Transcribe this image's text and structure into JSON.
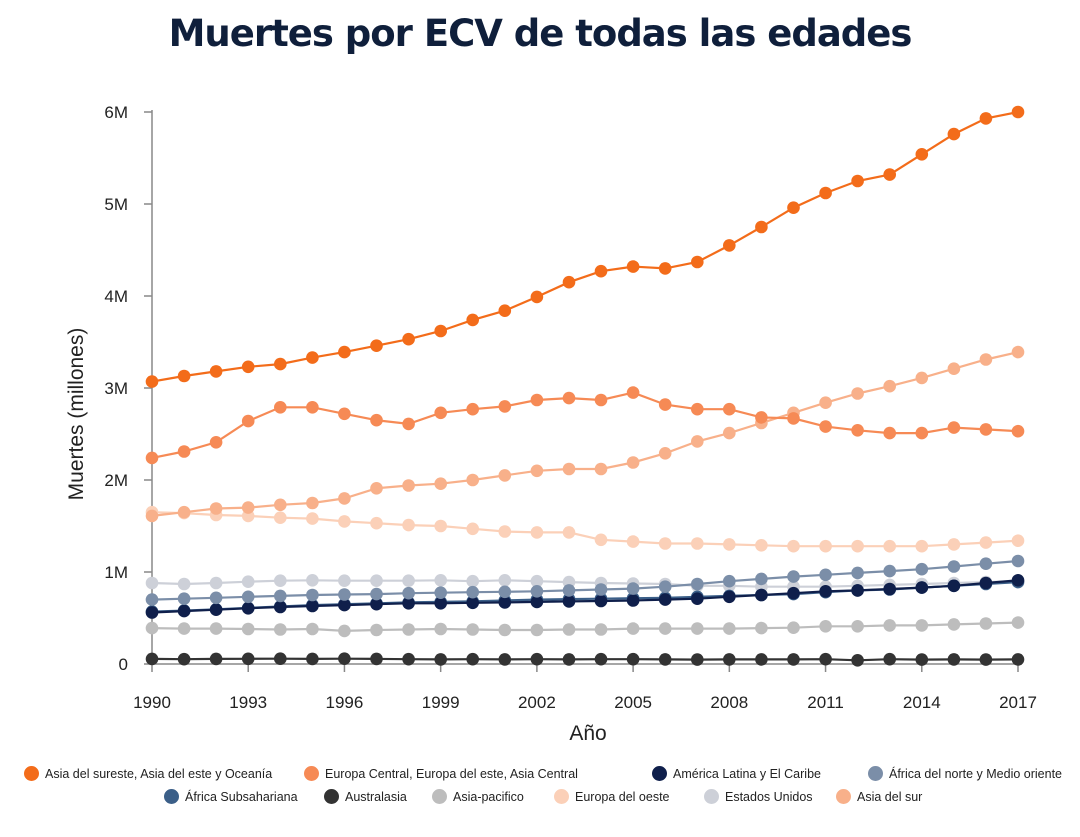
{
  "chart_data": {
    "type": "line",
    "title": "Muertes por ECV de todas las edades",
    "xlabel": "Año",
    "ylabel": "Muertes (millones)",
    "ylim": [
      0,
      6000000
    ],
    "xlim": [
      1990,
      2017
    ],
    "x_ticks": [
      1990,
      1993,
      1996,
      1999,
      2002,
      2005,
      2008,
      2011,
      2014,
      2017
    ],
    "x_tick_labels": [
      "1990",
      "1993",
      "1996",
      "1999",
      "2002",
      "2005",
      "2008",
      "2011",
      "2014",
      "2017"
    ],
    "y_ticks": [
      0,
      1000000,
      2000000,
      3000000,
      4000000,
      5000000,
      6000000
    ],
    "y_tick_labels": [
      "0",
      "1M",
      "2M",
      "3M",
      "4M",
      "5M",
      "6M"
    ],
    "x": [
      1990,
      1991,
      1992,
      1993,
      1994,
      1995,
      1996,
      1997,
      1998,
      1999,
      2000,
      2001,
      2002,
      2003,
      2004,
      2005,
      2006,
      2007,
      2008,
      2009,
      2010,
      2011,
      2012,
      2013,
      2014,
      2015,
      2016,
      2017
    ],
    "series": [
      {
        "name": "Estados Unidos",
        "color": "#cdd0d8",
        "values": [
          880000,
          870000,
          880000,
          895000,
          905000,
          910000,
          905000,
          905000,
          905000,
          910000,
          900000,
          910000,
          900000,
          890000,
          880000,
          875000,
          870000,
          850000,
          850000,
          840000,
          840000,
          840000,
          850000,
          860000,
          870000,
          880000,
          890000,
          900000
        ]
      },
      {
        "name": "Europa del oeste",
        "color": "#fbd0b8",
        "values": [
          1650000,
          1640000,
          1620000,
          1610000,
          1590000,
          1580000,
          1550000,
          1530000,
          1510000,
          1500000,
          1470000,
          1440000,
          1430000,
          1430000,
          1350000,
          1330000,
          1310000,
          1310000,
          1300000,
          1290000,
          1280000,
          1280000,
          1280000,
          1280000,
          1280000,
          1300000,
          1320000,
          1340000
        ]
      },
      {
        "name": "Asia-pacifico",
        "color": "#bdbdbd",
        "values": [
          390000,
          385000,
          385000,
          380000,
          375000,
          380000,
          360000,
          370000,
          375000,
          380000,
          375000,
          370000,
          370000,
          375000,
          375000,
          385000,
          385000,
          385000,
          385000,
          390000,
          395000,
          410000,
          410000,
          420000,
          420000,
          430000,
          440000,
          450000
        ]
      },
      {
        "name": "Australasia",
        "color": "#333333",
        "values": [
          55000,
          52000,
          55000,
          56000,
          58000,
          55000,
          58000,
          55000,
          52000,
          50000,
          52000,
          50000,
          52000,
          50000,
          52000,
          52000,
          50000,
          48000,
          50000,
          50000,
          50000,
          52000,
          40000,
          52000,
          48000,
          50000,
          48000,
          50000
        ]
      },
      {
        "name": "África Subsahariana",
        "color": "#3b5f88",
        "values": [
          570000,
          580000,
          595000,
          610000,
          625000,
          640000,
          650000,
          660000,
          670000,
          675000,
          680000,
          690000,
          700000,
          705000,
          710000,
          715000,
          720000,
          730000,
          740000,
          750000,
          760000,
          780000,
          800000,
          810000,
          830000,
          850000,
          870000,
          890000
        ]
      },
      {
        "name": "América Latina y El Caribe",
        "color": "#0f1f4b",
        "values": [
          560000,
          575000,
          590000,
          605000,
          620000,
          630000,
          640000,
          650000,
          660000,
          660000,
          665000,
          670000,
          675000,
          680000,
          685000,
          690000,
          700000,
          710000,
          730000,
          750000,
          770000,
          790000,
          800000,
          815000,
          830000,
          850000,
          880000,
          910000
        ]
      },
      {
        "name": "África del norte y Medio oriente",
        "color": "#7b8ea8",
        "values": [
          700000,
          710000,
          720000,
          730000,
          740000,
          750000,
          755000,
          760000,
          770000,
          775000,
          780000,
          785000,
          790000,
          800000,
          810000,
          820000,
          840000,
          870000,
          900000,
          925000,
          950000,
          970000,
          990000,
          1010000,
          1030000,
          1060000,
          1090000,
          1120000
        ]
      },
      {
        "name": "Asia del sur",
        "color": "#f8b08a",
        "values": [
          1610000,
          1650000,
          1690000,
          1700000,
          1730000,
          1750000,
          1800000,
          1910000,
          1940000,
          1960000,
          2000000,
          2050000,
          2100000,
          2120000,
          2120000,
          2190000,
          2290000,
          2420000,
          2510000,
          2620000,
          2730000,
          2840000,
          2940000,
          3020000,
          3110000,
          3210000,
          3310000,
          3390000
        ]
      },
      {
        "name": "Europa Central, Europa del este, Asia Central",
        "color": "#f68a55",
        "values": [
          2240000,
          2310000,
          2410000,
          2640000,
          2790000,
          2790000,
          2720000,
          2650000,
          2610000,
          2730000,
          2770000,
          2800000,
          2870000,
          2890000,
          2870000,
          2950000,
          2820000,
          2770000,
          2770000,
          2680000,
          2670000,
          2580000,
          2540000,
          2510000,
          2510000,
          2570000,
          2550000,
          2530000
        ]
      },
      {
        "name": "Asia del sureste, Asia del este y Oceanía",
        "color": "#f36c1a",
        "values": [
          3070000,
          3130000,
          3180000,
          3230000,
          3260000,
          3330000,
          3390000,
          3460000,
          3530000,
          3620000,
          3740000,
          3840000,
          3990000,
          4150000,
          4270000,
          4320000,
          4300000,
          4370000,
          4550000,
          4750000,
          4960000,
          5120000,
          5250000,
          5320000,
          5540000,
          5760000,
          5930000,
          6000000
        ]
      }
    ],
    "legend": [
      {
        "name": "Asia del sureste, Asia del este y Oceanía",
        "color": "#f36c1a"
      },
      {
        "name": "Europa Central, Europa del este, Asia Central",
        "color": "#f68a55"
      },
      {
        "name": "América Latina y El Caribe",
        "color": "#0f1f4b"
      },
      {
        "name": "África del norte y Medio oriente",
        "color": "#7b8ea8"
      },
      {
        "name": "África Subsahariana",
        "color": "#3b5f88"
      },
      {
        "name": "Australasia",
        "color": "#333333"
      },
      {
        "name": "Asia-pacifico",
        "color": "#bdbdbd"
      },
      {
        "name": "Europa del oeste",
        "color": "#fbd0b8"
      },
      {
        "name": "Estados Unidos",
        "color": "#cdd0d8"
      },
      {
        "name": "Asia del sur",
        "color": "#f8b08a"
      }
    ],
    "legend_position": "bottom"
  }
}
